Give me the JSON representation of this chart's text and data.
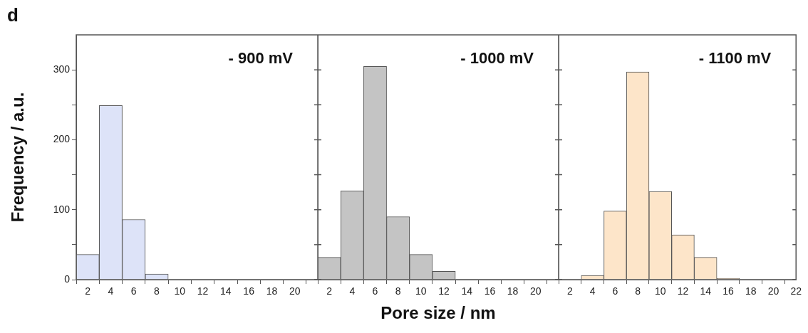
{
  "chart_data": [
    {
      "type": "histogram",
      "title": "- 900 mV",
      "ylabel": "Frequency / a.u.",
      "annotations": [
        "d"
      ],
      "bins": [
        1,
        3,
        5,
        7,
        9
      ],
      "values": [
        36,
        249,
        86,
        8
      ],
      "color": "#dde3f8",
      "xlim": [
        1,
        22
      ],
      "xticks": [
        2,
        4,
        6,
        8,
        10,
        12,
        14,
        16,
        18,
        20
      ],
      "ylim": [
        0,
        350
      ],
      "yticks": [
        0,
        {
          "value": 50,
          "label": null
        },
        100,
        {
          "value": 150,
          "label": null
        },
        200,
        {
          "value": 250,
          "label": null
        },
        300
      ],
      "grid": false
    },
    {
      "type": "histogram",
      "title": "- 1000 mV",
      "xlabel": "Pore size / nm",
      "bins": [
        1,
        3,
        5,
        7,
        9,
        11,
        13
      ],
      "values": [
        32,
        127,
        305,
        90,
        36,
        12
      ],
      "color": "#c4c4c4",
      "xlim": [
        1,
        22
      ],
      "xticks": [
        2,
        4,
        6,
        8,
        10,
        12,
        14,
        16,
        18,
        20
      ],
      "ylim": [
        0,
        350
      ],
      "yticks": [
        0,
        50,
        100,
        150,
        200,
        250,
        300
      ],
      "tick_labels": "x",
      "grid": false
    },
    {
      "type": "histogram",
      "title": "- 1100 mV",
      "bins": [
        3,
        5,
        7,
        9,
        11,
        13,
        15,
        17
      ],
      "values": [
        6,
        98,
        297,
        126,
        64,
        32,
        2
      ],
      "color": "#fde5c9",
      "xlim": [
        1,
        22
      ],
      "xticks": [
        2,
        4,
        6,
        8,
        10,
        12,
        14,
        16,
        18,
        20,
        22
      ],
      "ylim": [
        0,
        350
      ],
      "yticks": [
        0,
        50,
        100,
        150,
        200,
        250,
        300
      ],
      "tick_labels": "x",
      "grid": false
    }
  ]
}
